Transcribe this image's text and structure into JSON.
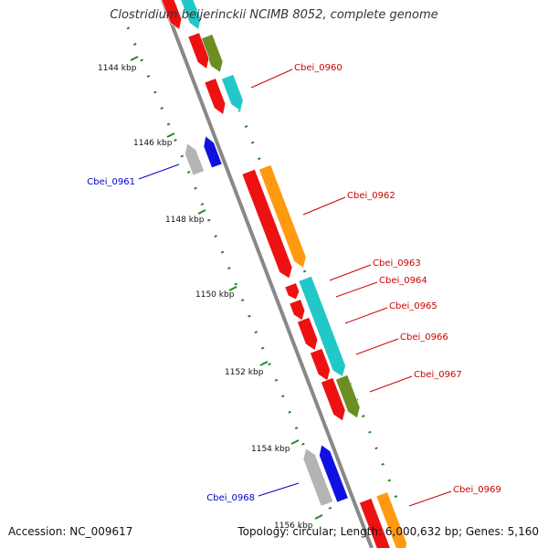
{
  "map": {
    "title": "Clostridium beijerinckii NCIMB 8052, complete genome",
    "accession_text": "Accession: NC_009617",
    "topology_text": "Topology: circular; Length: 6,000,632 bp; Genes: 5,160"
  },
  "scale_labels": [
    "1144 kbp",
    "1146 kbp",
    "1148 kbp",
    "1150 kbp",
    "1152 kbp",
    "1154 kbp",
    "1156 kbp"
  ],
  "gene_labels": {
    "forward": [
      "Cbei_0960",
      "Cbei_0962",
      "Cbei_0963",
      "Cbei_0964",
      "Cbei_0965",
      "Cbei_0966",
      "Cbei_0967",
      "Cbei_0969"
    ],
    "reverse": [
      "Cbei_0961",
      "Cbei_0968"
    ]
  },
  "colors": {
    "backbone": "#888888",
    "scale_ticks": "#228b22",
    "cds_red": "#ee1111",
    "cds_cyan": "#22c8c8",
    "cds_olive": "#6b8e23",
    "cds_orange": "#ff9a10",
    "cds_blue": "#1010e0",
    "cds_gray": "#b4b4b4",
    "label_forward": "#cc0000",
    "label_reverse": "#0000cc"
  }
}
